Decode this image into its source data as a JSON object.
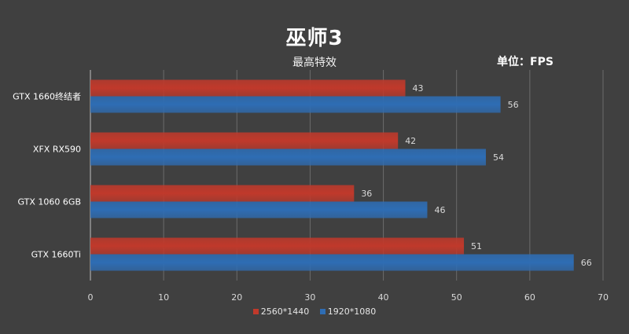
{
  "chart_data": {
    "type": "bar",
    "orientation": "horizontal",
    "title": "巫师3",
    "subtitle": "最高特效",
    "unit_label": "单位：FPS",
    "categories": [
      "GTX 1660终结者",
      "XFX RX590",
      "GTX 1060 6GB",
      "GTX 1660Ti"
    ],
    "series": [
      {
        "name": "2560*1440",
        "values": [
          43,
          42,
          36,
          51
        ],
        "color": "#c0392b"
      },
      {
        "name": "1920*1080",
        "values": [
          56,
          54,
          46,
          66
        ],
        "color": "#2e6db4"
      }
    ],
    "xlim": [
      0,
      70
    ],
    "xticks": [
      "0",
      "10",
      "20",
      "30",
      "40",
      "50",
      "60",
      "70"
    ],
    "grid": true,
    "legend_position": "bottom"
  }
}
